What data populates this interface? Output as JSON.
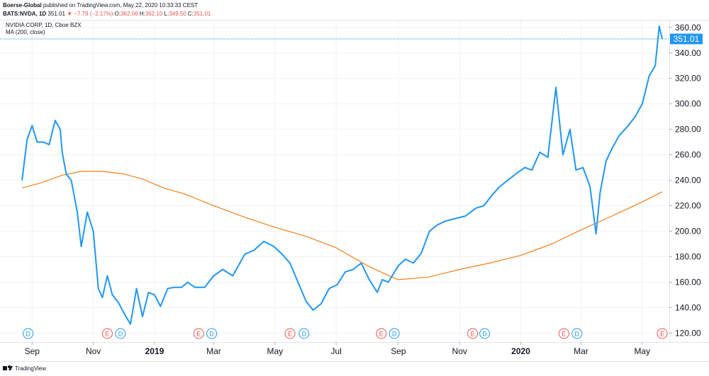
{
  "header": {
    "publisher": "Boerse-Global",
    "published_text": " published on TradingView.com, May 22, 2020 10:33:33 CEST",
    "symbol": "BATS:NVDA, 1D",
    "last": "351.01",
    "change": "▼ −7.79 (−2.17%)",
    "o_label": "O:",
    "o_value": "362.06",
    "h_label": "H:",
    "h_value": "362.10",
    "l_label": "L:",
    "l_value": "349.50",
    "c_label": "C:",
    "c_value": "351.01"
  },
  "legend": {
    "title": "NVIDIA CORP, 1D, Cboe BZX",
    "indicator": "MA (200, close)"
  },
  "footer": {
    "brand": "TradingView"
  },
  "colors": {
    "price_line": "#2196f3",
    "ma_line": "#f57f17",
    "grid": "#f0f3fa",
    "last_price_bg": "#2196f3",
    "earnings": "#ef5350",
    "dividends": "#2196f3"
  },
  "chart_data": {
    "type": "line",
    "title": "NVIDIA CORP, 1D, Cboe BZX",
    "ylim": [
      113,
      366
    ],
    "y_ticks": [
      "120.00",
      "140.00",
      "160.00",
      "180.00",
      "200.00",
      "220.00",
      "240.00",
      "260.00",
      "280.00",
      "300.00",
      "320.00",
      "340.00",
      "360.00"
    ],
    "x_tick_labels": [
      {
        "label": "Sep",
        "bold": false
      },
      {
        "label": "Nov",
        "bold": false
      },
      {
        "label": "2019",
        "bold": true
      },
      {
        "label": "Mar",
        "bold": false
      },
      {
        "label": "May",
        "bold": false
      },
      {
        "label": "Jul",
        "bold": false
      },
      {
        "label": "Sep",
        "bold": false
      },
      {
        "label": "Nov",
        "bold": false
      },
      {
        "label": "2020",
        "bold": true
      },
      {
        "label": "Mar",
        "bold": false
      },
      {
        "label": "May",
        "bold": false
      }
    ],
    "last_price": 351.01,
    "last_price_label": "351.01",
    "series": [
      {
        "name": "NVDA",
        "x": [
          "2018-08-22",
          "2018-08-27",
          "2018-09-01",
          "2018-09-06",
          "2018-09-12",
          "2018-09-18",
          "2018-09-24",
          "2018-09-29",
          "2018-10-01",
          "2018-10-05",
          "2018-10-10",
          "2018-10-16",
          "2018-10-20",
          "2018-10-26",
          "2018-11-01",
          "2018-11-06",
          "2018-11-10",
          "2018-11-15",
          "2018-11-20",
          "2018-11-26",
          "2018-12-02",
          "2018-12-08",
          "2018-12-14",
          "2018-12-20",
          "2018-12-26",
          "2019-01-01",
          "2019-01-07",
          "2019-01-14",
          "2019-01-21",
          "2019-01-28",
          "2019-02-03",
          "2019-02-10",
          "2019-02-20",
          "2019-03-01",
          "2019-03-10",
          "2019-03-20",
          "2019-04-01",
          "2019-04-10",
          "2019-04-20",
          "2019-04-30",
          "2019-05-08",
          "2019-05-16",
          "2019-05-24",
          "2019-06-01",
          "2019-06-08",
          "2019-06-16",
          "2019-06-24",
          "2019-07-02",
          "2019-07-10",
          "2019-07-18",
          "2019-07-26",
          "2019-08-03",
          "2019-08-11",
          "2019-08-16",
          "2019-08-22",
          "2019-09-01",
          "2019-09-08",
          "2019-09-16",
          "2019-09-24",
          "2019-10-02",
          "2019-10-10",
          "2019-10-18",
          "2019-10-28",
          "2019-11-07",
          "2019-11-17",
          "2019-11-25",
          "2019-12-03",
          "2019-12-11",
          "2019-12-19",
          "2019-12-27",
          "2020-01-05",
          "2020-01-12",
          "2020-01-20",
          "2020-01-28",
          "2020-02-05",
          "2020-02-12",
          "2020-02-19",
          "2020-02-25",
          "2020-03-03",
          "2020-03-10",
          "2020-03-16",
          "2020-03-20",
          "2020-03-26",
          "2020-04-01",
          "2020-04-08",
          "2020-04-16",
          "2020-04-24",
          "2020-05-01",
          "2020-05-08",
          "2020-05-14",
          "2020-05-18",
          "2020-05-21"
        ],
        "values": [
          240,
          272,
          283,
          270,
          270,
          268,
          287,
          280,
          262,
          245,
          240,
          215,
          188,
          215,
          200,
          155,
          148,
          165,
          150,
          144,
          135,
          127,
          155,
          133,
          152,
          150,
          141,
          155,
          156,
          156,
          160,
          156,
          156,
          165,
          170,
          165,
          182,
          185,
          192,
          188,
          182,
          175,
          160,
          145,
          138,
          143,
          155,
          158,
          168,
          170,
          175,
          162,
          152,
          162,
          160,
          173,
          178,
          175,
          183,
          200,
          205,
          208,
          210,
          212,
          218,
          220,
          228,
          235,
          240,
          245,
          250,
          248,
          262,
          258,
          313,
          260,
          280,
          248,
          250,
          235,
          198,
          230,
          255,
          265,
          275,
          282,
          290,
          300,
          322,
          330,
          361,
          351
        ]
      },
      {
        "name": "MA (200, close)",
        "x": [
          "2018-08-22",
          "2018-09-10",
          "2018-10-01",
          "2018-10-20",
          "2018-11-10",
          "2018-12-01",
          "2018-12-20",
          "2019-01-10",
          "2019-02-01",
          "2019-03-01",
          "2019-04-01",
          "2019-05-01",
          "2019-06-01",
          "2019-07-01",
          "2019-08-01",
          "2019-08-20",
          "2019-09-01",
          "2019-10-01",
          "2019-11-01",
          "2019-12-01",
          "2020-01-01",
          "2020-02-01",
          "2020-03-01",
          "2020-04-01",
          "2020-05-01",
          "2020-05-21"
        ],
        "values": [
          234,
          238,
          244,
          247,
          247,
          245,
          241,
          234,
          229,
          220,
          211,
          203,
          196,
          187,
          173,
          166,
          162,
          164,
          170,
          175,
          181,
          190,
          201,
          212,
          223,
          231
        ]
      }
    ],
    "events": [
      {
        "type": "D",
        "date": "2018-08-28"
      },
      {
        "type": "E",
        "date": "2018-11-15"
      },
      {
        "type": "D",
        "date": "2018-11-28"
      },
      {
        "type": "E",
        "date": "2019-02-14"
      },
      {
        "type": "D",
        "date": "2019-02-27"
      },
      {
        "type": "E",
        "date": "2019-05-16"
      },
      {
        "type": "D",
        "date": "2019-05-30"
      },
      {
        "type": "E",
        "date": "2019-08-15"
      },
      {
        "type": "D",
        "date": "2019-08-28"
      },
      {
        "type": "E",
        "date": "2019-11-14"
      },
      {
        "type": "D",
        "date": "2019-11-26"
      },
      {
        "type": "E",
        "date": "2020-02-13"
      },
      {
        "type": "D",
        "date": "2020-02-26"
      },
      {
        "type": "E",
        "date": "2020-05-21"
      }
    ]
  }
}
